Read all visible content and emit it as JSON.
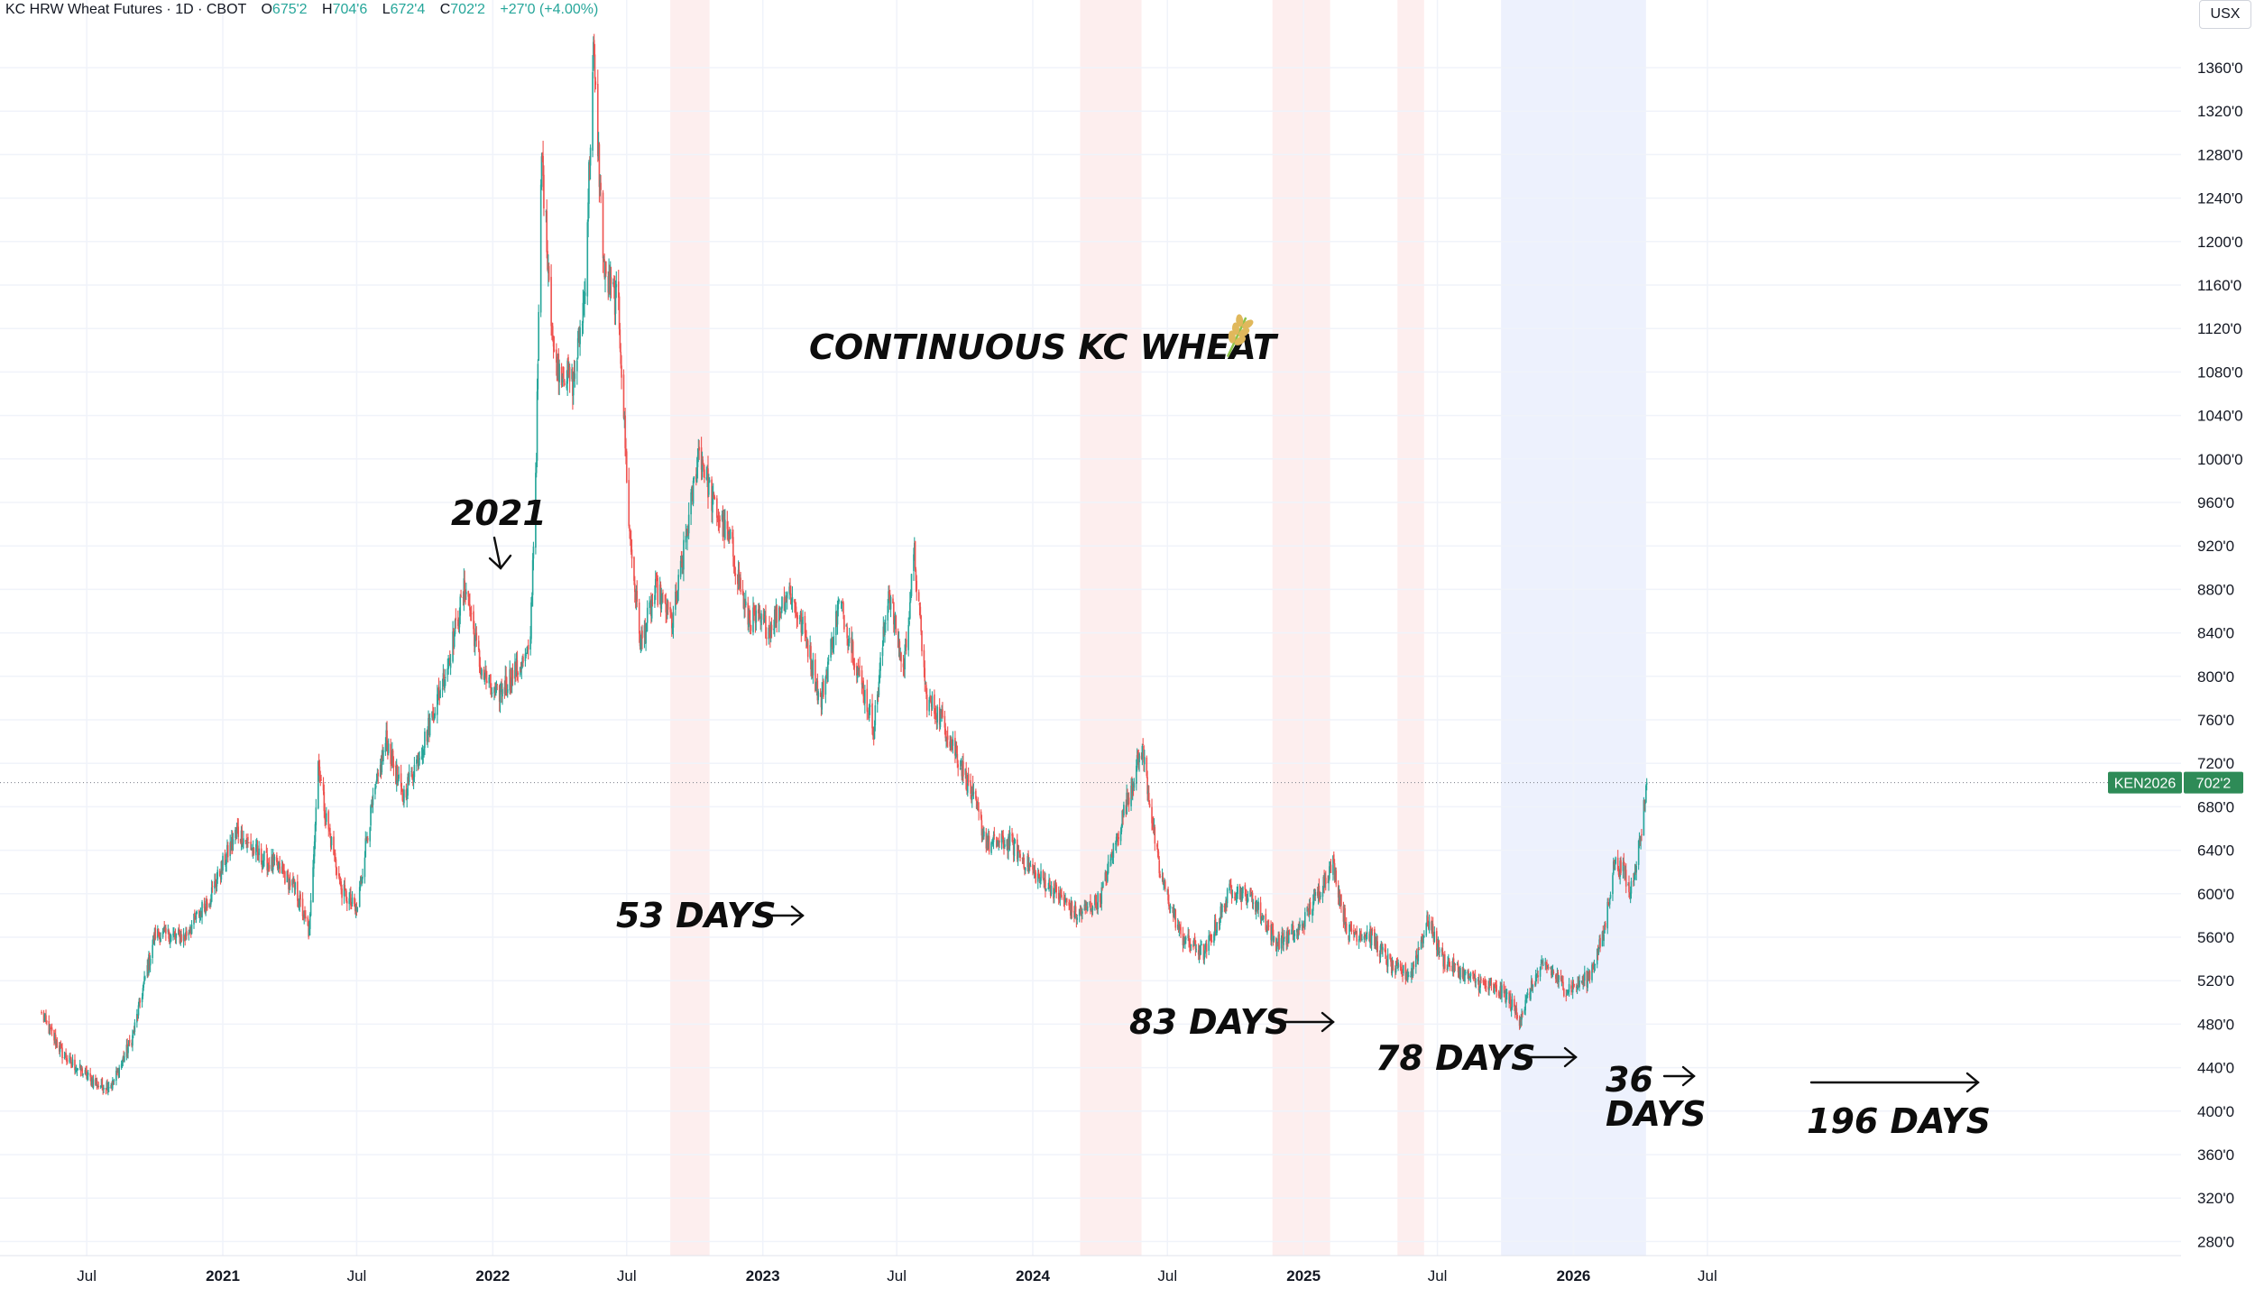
{
  "header": {
    "symbol": "KC HRW Wheat Futures · 1D · CBOT",
    "o_label": "O",
    "o_value": "675'2",
    "h_label": "H",
    "h_value": "704'6",
    "l_label": "L",
    "l_value": "672'4",
    "c_label": "C",
    "c_value": "702'2",
    "change": "+27'0 (+4.00%)",
    "unit": "USX"
  },
  "price_tag": {
    "symbol": "KEN2026",
    "value": "702'2"
  },
  "colors": {
    "up": "#26a69a",
    "down": "#ef5350",
    "pink_band": "#fdeeee",
    "blue_band": "#edf1fd",
    "tag_bg": "#2e8b57"
  },
  "chart_data": {
    "type": "candlestick",
    "title": "CONTINUOUS KC WHEAT",
    "y_ticks": [
      "1360'0",
      "1320'0",
      "1280'0",
      "1240'0",
      "1200'0",
      "1160'0",
      "1120'0",
      "1080'0",
      "1040'0",
      "1000'0",
      "960'0",
      "920'0",
      "880'0",
      "840'0",
      "800'0",
      "760'0",
      "720'0",
      "680'0",
      "640'0",
      "600'0",
      "560'0",
      "520'0",
      "480'0",
      "440'0",
      "400'0",
      "360'0",
      "320'0",
      "280'0"
    ],
    "x_ticks": [
      "Jul",
      "2021",
      "Jul",
      "2022",
      "Jul",
      "2023",
      "Jul",
      "2024",
      "Jul",
      "2025",
      "Jul",
      "2026",
      "Jul"
    ],
    "x_tick_dates": [
      "2020-07-01",
      "2021-01-01",
      "2021-07-01",
      "2022-01-01",
      "2022-07-01",
      "2023-01-01",
      "2023-07-01",
      "2024-01-01",
      "2024-07-01",
      "2025-01-01",
      "2025-07-01",
      "2026-01-01",
      "2026-07-01"
    ],
    "ylim": [
      270,
      1390
    ],
    "last_price": 702.25,
    "series_close_anchors": [
      {
        "date": "2020-05-01",
        "price": 488
      },
      {
        "date": "2020-06-01",
        "price": 450
      },
      {
        "date": "2020-07-15",
        "price": 424
      },
      {
        "date": "2020-08-05",
        "price": 425
      },
      {
        "date": "2020-09-01",
        "price": 468
      },
      {
        "date": "2020-10-01",
        "price": 563
      },
      {
        "date": "2020-11-10",
        "price": 560
      },
      {
        "date": "2020-12-15",
        "price": 598
      },
      {
        "date": "2021-01-20",
        "price": 658
      },
      {
        "date": "2021-02-20",
        "price": 634
      },
      {
        "date": "2021-03-20",
        "price": 622
      },
      {
        "date": "2021-04-10",
        "price": 603
      },
      {
        "date": "2021-04-28",
        "price": 563
      },
      {
        "date": "2021-05-10",
        "price": 722
      },
      {
        "date": "2021-05-20",
        "price": 672
      },
      {
        "date": "2021-06-10",
        "price": 605
      },
      {
        "date": "2021-07-01",
        "price": 582
      },
      {
        "date": "2021-07-15",
        "price": 655
      },
      {
        "date": "2021-08-10",
        "price": 742
      },
      {
        "date": "2021-09-01",
        "price": 688
      },
      {
        "date": "2021-10-01",
        "price": 742
      },
      {
        "date": "2021-11-01",
        "price": 810
      },
      {
        "date": "2021-11-25",
        "price": 885
      },
      {
        "date": "2021-12-15",
        "price": 808
      },
      {
        "date": "2022-01-05",
        "price": 780
      },
      {
        "date": "2022-01-25",
        "price": 800
      },
      {
        "date": "2022-02-20",
        "price": 820
      },
      {
        "date": "2022-03-01",
        "price": 1010
      },
      {
        "date": "2022-03-08",
        "price": 1280
      },
      {
        "date": "2022-03-25",
        "price": 1090
      },
      {
        "date": "2022-04-20",
        "price": 1070
      },
      {
        "date": "2022-05-05",
        "price": 1150
      },
      {
        "date": "2022-05-17",
        "price": 1372
      },
      {
        "date": "2022-06-01",
        "price": 1170
      },
      {
        "date": "2022-06-20",
        "price": 1140
      },
      {
        "date": "2022-07-05",
        "price": 930
      },
      {
        "date": "2022-07-20",
        "price": 830
      },
      {
        "date": "2022-08-10",
        "price": 880
      },
      {
        "date": "2022-09-01",
        "price": 850
      },
      {
        "date": "2022-09-20",
        "price": 930
      },
      {
        "date": "2022-10-07",
        "price": 1010
      },
      {
        "date": "2022-10-25",
        "price": 960
      },
      {
        "date": "2022-11-20",
        "price": 920
      },
      {
        "date": "2022-12-10",
        "price": 855
      },
      {
        "date": "2023-01-10",
        "price": 845
      },
      {
        "date": "2023-02-05",
        "price": 880
      },
      {
        "date": "2023-03-01",
        "price": 835
      },
      {
        "date": "2023-03-20",
        "price": 775
      },
      {
        "date": "2023-04-15",
        "price": 870
      },
      {
        "date": "2023-05-10",
        "price": 805
      },
      {
        "date": "2023-05-31",
        "price": 752
      },
      {
        "date": "2023-06-20",
        "price": 880
      },
      {
        "date": "2023-07-10",
        "price": 805
      },
      {
        "date": "2023-07-25",
        "price": 912
      },
      {
        "date": "2023-08-10",
        "price": 780
      },
      {
        "date": "2023-09-01",
        "price": 760
      },
      {
        "date": "2023-10-01",
        "price": 710
      },
      {
        "date": "2023-11-01",
        "price": 645
      },
      {
        "date": "2023-12-01",
        "price": 648
      },
      {
        "date": "2024-01-01",
        "price": 620
      },
      {
        "date": "2024-02-01",
        "price": 602
      },
      {
        "date": "2024-03-01",
        "price": 580
      },
      {
        "date": "2024-04-01",
        "price": 595
      },
      {
        "date": "2024-05-05",
        "price": 680
      },
      {
        "date": "2024-05-28",
        "price": 735
      },
      {
        "date": "2024-06-20",
        "price": 620
      },
      {
        "date": "2024-07-20",
        "price": 560
      },
      {
        "date": "2024-08-20",
        "price": 545
      },
      {
        "date": "2024-09-25",
        "price": 605
      },
      {
        "date": "2024-10-25",
        "price": 595
      },
      {
        "date": "2024-11-25",
        "price": 555
      },
      {
        "date": "2024-12-25",
        "price": 565
      },
      {
        "date": "2025-01-20",
        "price": 600
      },
      {
        "date": "2025-02-10",
        "price": 628
      },
      {
        "date": "2025-03-01",
        "price": 565
      },
      {
        "date": "2025-04-01",
        "price": 562
      },
      {
        "date": "2025-05-01",
        "price": 532
      },
      {
        "date": "2025-05-25",
        "price": 525
      },
      {
        "date": "2025-06-18",
        "price": 575
      },
      {
        "date": "2025-07-10",
        "price": 538
      },
      {
        "date": "2025-08-20",
        "price": 520
      },
      {
        "date": "2025-10-01",
        "price": 507
      },
      {
        "date": "2025-10-20",
        "price": 485
      },
      {
        "date": "2025-11-10",
        "price": 522
      },
      {
        "date": "2025-11-25",
        "price": 535
      },
      {
        "date": "2025-12-20",
        "price": 512
      },
      {
        "date": "2026-01-20",
        "price": 522
      },
      {
        "date": "2026-02-10",
        "price": 560
      },
      {
        "date": "2026-02-25",
        "price": 628
      },
      {
        "date": "2026-03-10",
        "price": 620
      },
      {
        "date": "2026-03-18",
        "price": 600
      },
      {
        "date": "2026-04-01",
        "price": 650
      },
      {
        "date": "2026-04-10",
        "price": 702
      }
    ],
    "shaded_periods": [
      {
        "start": "2022-08-29",
        "end": "2022-10-21",
        "label": "53 DAYS",
        "color": "pink"
      },
      {
        "start": "2024-03-05",
        "end": "2024-05-27",
        "label": "83 DAYS",
        "color": "pink"
      },
      {
        "start": "2024-11-20",
        "end": "2025-02-06",
        "label": "78 DAYS",
        "color": "pink"
      },
      {
        "start": "2025-05-08",
        "end": "2025-06-13",
        "label": "36 DAYS",
        "color": "pink"
      },
      {
        "start": "2025-09-25",
        "end": "2026-04-09",
        "label": "196 DAYS",
        "color": "blue"
      }
    ],
    "annotations": [
      {
        "text": "2021"
      },
      {
        "text": "53 DAYS"
      },
      {
        "text": "83 DAYS"
      },
      {
        "text": "78 DAYS"
      },
      {
        "text": "36",
        "text2": "DAYS"
      },
      {
        "text": "196 DAYS"
      }
    ]
  }
}
